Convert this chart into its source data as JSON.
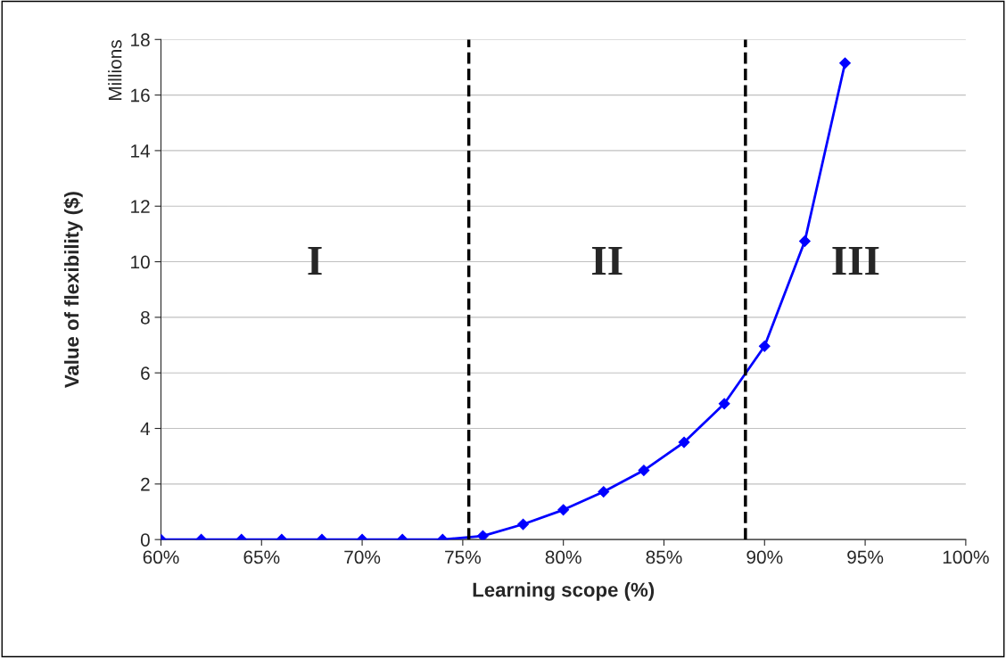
{
  "chart_data": {
    "type": "line",
    "xlabel": "Learning scope (%)",
    "ylabel": "Value of flexibility ($)",
    "x": [
      60,
      62,
      64,
      66,
      68,
      70,
      72,
      74,
      76,
      78,
      80,
      82,
      84,
      86,
      88,
      90,
      92,
      94
    ],
    "series": [
      {
        "color": "#0000ff",
        "values": [
          0,
          0,
          0,
          0,
          0,
          0,
          0,
          0,
          0.13,
          0.55,
          1.07,
          1.72,
          2.49,
          3.5,
          4.89,
          6.96,
          10.74,
          17.15
        ]
      }
    ],
    "marker": "diamond",
    "line_style": "solid",
    "grid": "y",
    "xlim": [
      60,
      100
    ],
    "xticks": [
      {
        "value": 60,
        "label": "60%"
      },
      {
        "value": 65,
        "label": "65%"
      },
      {
        "value": 70,
        "label": "70%"
      },
      {
        "value": 75,
        "label": "75%"
      },
      {
        "value": 80,
        "label": "80%"
      },
      {
        "value": 85,
        "label": "85%"
      },
      {
        "value": 90,
        "label": "90%"
      },
      {
        "value": 95,
        "label": "95%"
      },
      {
        "value": 100,
        "label": "100%"
      }
    ],
    "ylim": [
      0,
      18
    ],
    "yticks": [
      0,
      2,
      4,
      6,
      8,
      10,
      12,
      14,
      16,
      18
    ],
    "ref_lines": [
      {
        "axis": "x",
        "value": 75.3,
        "color": "#000000",
        "line_style": "dashed"
      },
      {
        "axis": "x",
        "value": 89.05,
        "color": "#000000",
        "line_style": "dashed"
      }
    ],
    "annotations": [
      "I",
      "II",
      "III",
      "Millions"
    ],
    "legend": false
  }
}
